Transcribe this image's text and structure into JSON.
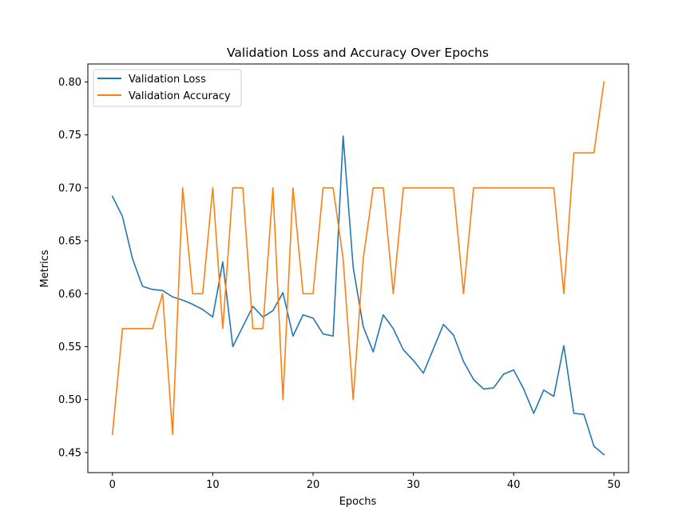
{
  "chart_data": {
    "type": "line",
    "title": "Validation Loss and Accuracy Over Epochs",
    "xlabel": "Epochs",
    "ylabel": "Metrics",
    "xlim": [
      -2.45,
      51.45
    ],
    "ylim": [
      0.431,
      0.817
    ],
    "xticks": [
      0,
      10,
      20,
      30,
      40,
      50
    ],
    "yticks": [
      0.45,
      0.5,
      0.55,
      0.6,
      0.65,
      0.7,
      0.75,
      0.8
    ],
    "ytick_labels": [
      "0.45",
      "0.50",
      "0.55",
      "0.60",
      "0.65",
      "0.70",
      "0.75",
      "0.80"
    ],
    "grid": false,
    "legend_position": "upper-left",
    "x": [
      0,
      1,
      2,
      3,
      4,
      5,
      6,
      7,
      8,
      9,
      10,
      11,
      12,
      13,
      14,
      15,
      16,
      17,
      18,
      19,
      20,
      21,
      22,
      23,
      24,
      25,
      26,
      27,
      28,
      29,
      30,
      31,
      32,
      33,
      34,
      35,
      36,
      37,
      38,
      39,
      40,
      41,
      42,
      43,
      44,
      45,
      46,
      47,
      48,
      49
    ],
    "series": [
      {
        "name": "Validation Loss",
        "color": "#1f77b4",
        "values": [
          0.692,
          0.673,
          0.633,
          0.607,
          0.604,
          0.603,
          0.597,
          0.594,
          0.59,
          0.585,
          0.578,
          0.63,
          0.55,
          0.569,
          0.588,
          0.578,
          0.584,
          0.601,
          0.56,
          0.58,
          0.577,
          0.562,
          0.56,
          0.749,
          0.625,
          0.569,
          0.545,
          0.58,
          0.567,
          0.547,
          0.537,
          0.525,
          0.548,
          0.571,
          0.561,
          0.536,
          0.519,
          0.51,
          0.511,
          0.524,
          0.528,
          0.51,
          0.487,
          0.509,
          0.503,
          0.551,
          0.487,
          0.486,
          0.456,
          0.448
        ]
      },
      {
        "name": "Validation Accuracy",
        "color": "#ff7f0e",
        "values": [
          0.467,
          0.567,
          0.567,
          0.567,
          0.567,
          0.6,
          0.467,
          0.7,
          0.6,
          0.6,
          0.7,
          0.567,
          0.7,
          0.7,
          0.567,
          0.567,
          0.7,
          0.5,
          0.7,
          0.6,
          0.6,
          0.7,
          0.7,
          0.633,
          0.5,
          0.633,
          0.7,
          0.7,
          0.6,
          0.7,
          0.7,
          0.7,
          0.7,
          0.7,
          0.7,
          0.6,
          0.7,
          0.7,
          0.7,
          0.7,
          0.7,
          0.7,
          0.7,
          0.7,
          0.7,
          0.6,
          0.733,
          0.733,
          0.733,
          0.8
        ]
      }
    ]
  }
}
